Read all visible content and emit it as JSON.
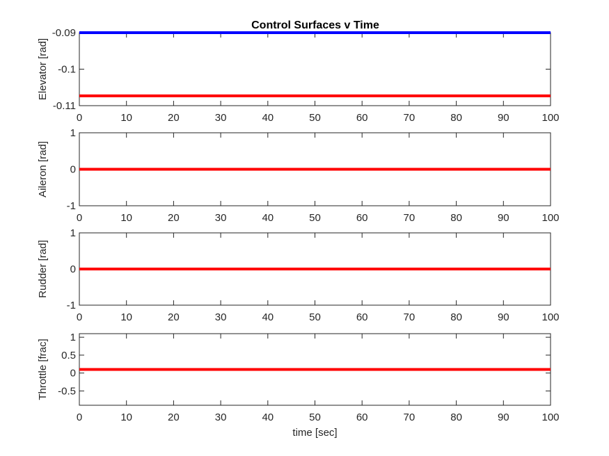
{
  "figure": {
    "title": "Control Surfaces v Time",
    "background": "#ffffff"
  },
  "chart_data": [
    {
      "type": "line",
      "title": "Control Surfaces v Time",
      "xlabel": "",
      "ylabel": "Elevator [rad]",
      "xlim": [
        0,
        100
      ],
      "ylim": [
        -0.11,
        -0.09
      ],
      "xticks": [
        0,
        10,
        20,
        30,
        40,
        50,
        60,
        70,
        80,
        90,
        100
      ],
      "xtick_labels": [
        "0",
        "10",
        "20",
        "30",
        "40",
        "50",
        "60",
        "70",
        "80",
        "90",
        "100"
      ],
      "yticks": [
        -0.09,
        -0.1,
        -0.11
      ],
      "ytick_labels": [
        "-0.09",
        "-0.1",
        "-0.11"
      ],
      "series": [
        {
          "color": "#0000ff",
          "x": [
            0,
            100
          ],
          "y": [
            -0.09,
            -0.09
          ]
        },
        {
          "color": "#ff0000",
          "x": [
            0,
            100
          ],
          "y": [
            -0.1073,
            -0.1073
          ]
        }
      ]
    },
    {
      "type": "line",
      "title": "",
      "xlabel": "",
      "ylabel": "Aileron [rad]",
      "xlim": [
        0,
        100
      ],
      "ylim": [
        -1,
        1
      ],
      "xticks": [
        0,
        10,
        20,
        30,
        40,
        50,
        60,
        70,
        80,
        90,
        100
      ],
      "xtick_labels": [
        "0",
        "10",
        "20",
        "30",
        "40",
        "50",
        "60",
        "70",
        "80",
        "90",
        "100"
      ],
      "yticks": [
        1,
        0,
        -1
      ],
      "ytick_labels": [
        "1",
        "0",
        "-1"
      ],
      "series": [
        {
          "color": "#ff0000",
          "x": [
            0,
            100
          ],
          "y": [
            0,
            0
          ]
        }
      ]
    },
    {
      "type": "line",
      "title": "",
      "xlabel": "",
      "ylabel": "Rudder [rad]",
      "xlim": [
        0,
        100
      ],
      "ylim": [
        -1,
        1
      ],
      "xticks": [
        0,
        10,
        20,
        30,
        40,
        50,
        60,
        70,
        80,
        90,
        100
      ],
      "xtick_labels": [
        "0",
        "10",
        "20",
        "30",
        "40",
        "50",
        "60",
        "70",
        "80",
        "90",
        "100"
      ],
      "yticks": [
        1,
        0,
        -1
      ],
      "ytick_labels": [
        "1",
        "0",
        "-1"
      ],
      "series": [
        {
          "color": "#ff0000",
          "x": [
            0,
            100
          ],
          "y": [
            0,
            0
          ]
        }
      ]
    },
    {
      "type": "line",
      "title": "",
      "xlabel": "time [sec]",
      "ylabel": "Throttle [frac]",
      "xlim": [
        0,
        100
      ],
      "ylim": [
        -0.9,
        1.1
      ],
      "xticks": [
        0,
        10,
        20,
        30,
        40,
        50,
        60,
        70,
        80,
        90,
        100
      ],
      "xtick_labels": [
        "0",
        "10",
        "20",
        "30",
        "40",
        "50",
        "60",
        "70",
        "80",
        "90",
        "100"
      ],
      "yticks": [
        1,
        0.5,
        0,
        -0.5
      ],
      "ytick_labels": [
        "1",
        "0.5",
        "0",
        "-0.5"
      ],
      "series": [
        {
          "color": "#ff0000",
          "x": [
            0,
            100
          ],
          "y": [
            0.1,
            0.1
          ]
        }
      ]
    }
  ]
}
